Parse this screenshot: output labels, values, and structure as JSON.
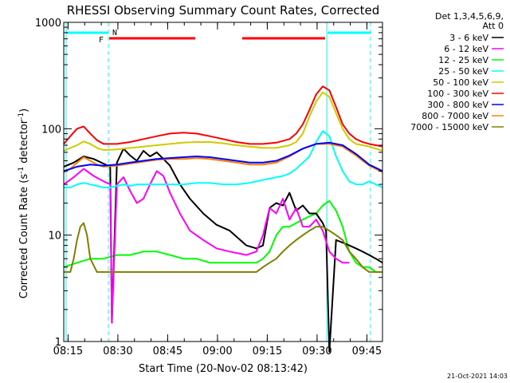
{
  "chart_data": {
    "type": "line",
    "title": "RHESSI Observing Summary Count Rates, Corrected",
    "xlabel": "Start Time (20-Nov-02 08:13:42)",
    "ylabel_main": "Corrected Count Rate (s",
    "ylabel_sup": "-1",
    "ylabel_end": " detector",
    "ylabel_end_sup": "-1",
    "ylabel_close": ")",
    "y_scale": "log",
    "ylim": [
      1,
      1000
    ],
    "xlim_minutes": [
      0,
      96
    ],
    "x_ticks": [
      {
        "m": 1.3,
        "label": "08:15"
      },
      {
        "m": 16.3,
        "label": "08:30"
      },
      {
        "m": 31.3,
        "label": "08:45"
      },
      {
        "m": 46.3,
        "label": "09:00"
      },
      {
        "m": 61.3,
        "label": "09:15"
      },
      {
        "m": 76.3,
        "label": "09:30"
      },
      {
        "m": 91.3,
        "label": "09:45"
      }
    ],
    "y_ticks": [
      {
        "v": 1,
        "label": "1"
      },
      {
        "v": 10,
        "label": "10"
      },
      {
        "v": 100,
        "label": "100"
      },
      {
        "v": 1000,
        "label": "1000"
      }
    ],
    "legend_header": [
      "Det 1,3,4,5,6,9,",
      "Att 0"
    ],
    "legend_position": "right",
    "footer": "21-Oct-2021 14:03",
    "flags": [
      {
        "label": "F",
        "color": "#ff0000"
      },
      {
        "label": "N",
        "color": "#00ffff"
      }
    ],
    "series": [
      {
        "name": "3 - 6 keV",
        "color": "#000000",
        "x": [
          0,
          3,
          6,
          9,
          12,
          14,
          14.5,
          16,
          18,
          20,
          22,
          24,
          26,
          28,
          30,
          32,
          35,
          38,
          42,
          46,
          50,
          55,
          58,
          60,
          62,
          64,
          66,
          68,
          70,
          72,
          74,
          76,
          78,
          79,
          80,
          82,
          84,
          86,
          88,
          90,
          92,
          94,
          96
        ],
        "y": [
          44,
          48,
          55,
          52,
          47,
          44,
          1.5,
          48,
          65,
          56,
          50,
          62,
          55,
          60,
          52,
          45,
          30,
          22,
          16,
          12.5,
          11,
          8,
          7.5,
          8,
          18,
          20,
          19,
          25,
          17,
          19,
          16,
          16,
          13,
          11,
          0.8,
          9,
          8.5,
          8,
          7.5,
          7,
          6.5,
          6,
          5.5
        ]
      },
      {
        "name": "6 - 12 keV",
        "color": "#ff00ff",
        "x": [
          0,
          3,
          6,
          9,
          12,
          14,
          14.5,
          16,
          18,
          19,
          20,
          22,
          24,
          26,
          28,
          30,
          32,
          35,
          38,
          42,
          46,
          50,
          55,
          58,
          60,
          62,
          64,
          66,
          68,
          70,
          72,
          74,
          76,
          78,
          80,
          82,
          84,
          86
        ],
        "y": [
          30,
          35,
          42,
          36,
          32,
          30,
          1.5,
          30,
          35,
          30,
          26,
          20,
          22,
          30,
          40,
          36,
          25,
          16,
          11,
          9,
          7.5,
          7,
          6.5,
          7,
          10,
          18,
          16,
          22,
          14,
          18,
          12,
          12,
          14,
          11,
          7,
          6,
          5.5,
          5.5
        ]
      },
      {
        "name": "12 - 25 keV",
        "color": "#00ff00",
        "x": [
          0,
          4,
          8,
          12,
          16,
          20,
          24,
          28,
          32,
          36,
          40,
          44,
          48,
          52,
          56,
          58,
          60,
          62,
          64,
          66,
          68,
          70,
          72,
          74,
          76,
          78,
          80,
          82,
          84,
          86,
          88,
          90,
          92,
          94,
          96
        ],
        "y": [
          5,
          5.5,
          6,
          6,
          6.5,
          6.5,
          7,
          7,
          6.5,
          6,
          6,
          5.5,
          5.5,
          5.5,
          5.5,
          5.5,
          6,
          7,
          10,
          12,
          12,
          13,
          14,
          15,
          16,
          19,
          21,
          17,
          12,
          7,
          5.5,
          5,
          5,
          4.5,
          4.5
        ]
      },
      {
        "name": "25 - 50 keV",
        "color": "#00ffff",
        "x": [
          0,
          2,
          4,
          6,
          8,
          10,
          12,
          14,
          16,
          18,
          20,
          22,
          24,
          28,
          32,
          36,
          40,
          44,
          48,
          52,
          56,
          60,
          62,
          64,
          66,
          68,
          70,
          72,
          74,
          76,
          78,
          80,
          82,
          84,
          86,
          88,
          90,
          92,
          94,
          96
        ],
        "y": [
          28,
          28,
          30,
          31,
          30,
          29,
          28,
          28,
          29,
          30,
          29,
          30,
          30,
          30,
          30,
          30,
          31,
          31,
          30,
          30,
          31,
          33,
          34,
          35,
          36,
          38,
          42,
          48,
          55,
          75,
          95,
          85,
          55,
          40,
          32,
          30,
          30,
          32,
          30,
          28
        ]
      },
      {
        "name": "50 - 100 keV",
        "color": "#cccc00",
        "x": [
          0,
          2,
          4,
          6,
          8,
          10,
          12,
          16,
          20,
          24,
          28,
          32,
          36,
          40,
          44,
          48,
          52,
          56,
          60,
          64,
          68,
          70,
          72,
          74,
          76,
          78,
          80,
          82,
          84,
          86,
          88,
          90,
          92,
          94,
          96
        ],
        "y": [
          62,
          66,
          70,
          76,
          72,
          66,
          63,
          64,
          66,
          68,
          70,
          72,
          74,
          75,
          75,
          73,
          70,
          68,
          66,
          66,
          70,
          75,
          90,
          130,
          180,
          220,
          200,
          140,
          100,
          80,
          72,
          70,
          68,
          65,
          62
        ]
      },
      {
        "name": "100 - 300 keV",
        "color": "#ff0000",
        "x": [
          0,
          2,
          4,
          6,
          8,
          10,
          12,
          16,
          20,
          24,
          28,
          32,
          36,
          40,
          44,
          48,
          52,
          56,
          60,
          64,
          68,
          70,
          72,
          74,
          76,
          78,
          80,
          82,
          84,
          86,
          88,
          90,
          92,
          94,
          96
        ],
        "y": [
          72,
          85,
          100,
          105,
          90,
          78,
          72,
          72,
          75,
          80,
          85,
          90,
          92,
          90,
          85,
          80,
          75,
          72,
          72,
          74,
          80,
          90,
          110,
          150,
          210,
          250,
          230,
          160,
          110,
          90,
          80,
          75,
          72,
          70,
          68
        ]
      },
      {
        "name": "300 - 800 keV",
        "color": "#0000ff",
        "x": [
          0,
          4,
          8,
          12,
          16,
          20,
          24,
          28,
          32,
          36,
          40,
          44,
          48,
          52,
          56,
          60,
          64,
          68,
          72,
          76,
          80,
          84,
          88,
          92,
          96
        ],
        "y": [
          40,
          44,
          46,
          45,
          46,
          48,
          50,
          52,
          53,
          54,
          55,
          54,
          52,
          50,
          48,
          48,
          50,
          56,
          65,
          72,
          74,
          70,
          58,
          46,
          40
        ]
      },
      {
        "name": "800 - 7000 keV",
        "color": "#ff8000",
        "x": [
          0,
          2,
          4,
          6,
          8,
          10,
          12,
          16,
          20,
          24,
          28,
          32,
          36,
          40,
          44,
          48,
          52,
          56,
          60,
          64,
          68,
          72,
          76,
          80,
          84,
          88,
          92,
          96
        ],
        "y": [
          39,
          42,
          48,
          54,
          50,
          46,
          44,
          45,
          47,
          49,
          51,
          52,
          52,
          53,
          52,
          50,
          48,
          46,
          46,
          48,
          55,
          65,
          72,
          72,
          68,
          56,
          45,
          39
        ]
      },
      {
        "name": "7000 - 15000 keV",
        "color": "#808000",
        "x": [
          0,
          2,
          3,
          4,
          5,
          6,
          7,
          8,
          10,
          12,
          14,
          16,
          20,
          24,
          28,
          32,
          36,
          40,
          44,
          48,
          52,
          56,
          58,
          60,
          62,
          64,
          66,
          68,
          70,
          72,
          74,
          76,
          78,
          80,
          82,
          84,
          86,
          88,
          90,
          92,
          94,
          96
        ],
        "y": [
          4.5,
          4.5,
          6,
          9,
          12,
          13,
          10,
          6,
          4.5,
          4.5,
          4.5,
          4.5,
          4.5,
          4.5,
          4.5,
          4.5,
          4.5,
          4.5,
          4.5,
          4.5,
          4.5,
          4.5,
          4.5,
          5,
          5.5,
          6,
          7,
          8,
          9,
          10,
          11,
          12,
          12,
          11,
          10,
          9,
          7,
          6,
          5,
          4.5,
          4.5,
          4.5
        ]
      }
    ]
  }
}
